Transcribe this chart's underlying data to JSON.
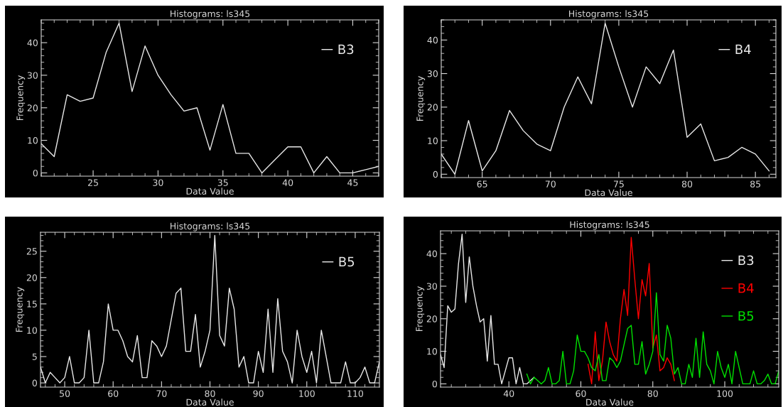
{
  "chart_data": [
    {
      "type": "line",
      "title": "Histograms: ls345",
      "xlabel": "Data Value",
      "ylabel": "Frequency",
      "xlim": [
        21,
        47
      ],
      "ylim": [
        -1,
        47
      ],
      "xticks": [
        25,
        30,
        35,
        40,
        45
      ],
      "yticks": [
        0,
        10,
        20,
        30,
        40
      ],
      "grid": false,
      "legend": "top right",
      "marker": "none",
      "line_style": "solid",
      "series": [
        {
          "name": "B3",
          "color": "#e8e8e8",
          "x": [
            21,
            22,
            23,
            24,
            25,
            26,
            27,
            28,
            29,
            30,
            31,
            32,
            33,
            34,
            35,
            36,
            37,
            38,
            39,
            40,
            41,
            42,
            43,
            44,
            45,
            46,
            47
          ],
          "values": [
            9,
            5,
            24,
            22,
            23,
            37,
            46,
            25,
            39,
            30,
            24,
            19,
            20,
            7,
            21,
            6,
            6,
            0,
            4,
            8,
            8,
            0,
            5,
            0,
            0,
            1,
            2
          ]
        }
      ]
    },
    {
      "type": "line",
      "title": "Histograms: ls345",
      "xlabel": "Data Value",
      "ylabel": "Frequency",
      "xlim": [
        62,
        86.5
      ],
      "ylim": [
        -1,
        46
      ],
      "xticks": [
        65,
        70,
        75,
        80,
        85
      ],
      "yticks": [
        0,
        10,
        20,
        30,
        40
      ],
      "grid": false,
      "legend": "top right",
      "marker": "none",
      "line_style": "solid",
      "series": [
        {
          "name": "B4",
          "color": "#e8e8e8",
          "x": [
            62,
            63,
            64,
            65,
            66,
            67,
            68,
            69,
            70,
            71,
            72,
            73,
            74,
            75,
            76,
            77,
            78,
            79,
            80,
            81,
            82,
            83,
            84,
            85,
            86
          ],
          "values": [
            6,
            0,
            16,
            1,
            7,
            19,
            13,
            9,
            7,
            20,
            29,
            21,
            45,
            32,
            20,
            32,
            27,
            37,
            11,
            15,
            4,
            5,
            8,
            6,
            1
          ]
        }
      ]
    },
    {
      "type": "line",
      "title": "Histograms: ls345",
      "xlabel": "Data Value",
      "ylabel": "Frequency",
      "xlim": [
        45,
        115
      ],
      "ylim": [
        -0.8,
        28.6
      ],
      "xticks": [
        50,
        60,
        70,
        80,
        90,
        100,
        110
      ],
      "yticks": [
        0,
        5,
        10,
        15,
        20,
        25
      ],
      "grid": false,
      "legend": "top right",
      "marker": "none",
      "line_style": "solid",
      "series": [
        {
          "name": "B5",
          "color": "#e8e8e8",
          "x": [
            45,
            46,
            47,
            48,
            49,
            50,
            51,
            52,
            53,
            54,
            55,
            56,
            57,
            58,
            59,
            60,
            61,
            62,
            63,
            64,
            65,
            66,
            67,
            68,
            69,
            70,
            71,
            72,
            73,
            74,
            75,
            76,
            77,
            78,
            79,
            80,
            81,
            82,
            83,
            84,
            85,
            86,
            87,
            88,
            89,
            90,
            91,
            92,
            93,
            94,
            95,
            96,
            97,
            98,
            99,
            100,
            101,
            102,
            103,
            104,
            105,
            106,
            107,
            108,
            109,
            110,
            111,
            112,
            113,
            114,
            115
          ],
          "values": [
            3,
            0,
            2,
            1,
            0,
            1,
            5,
            0,
            0,
            1,
            10,
            0,
            0,
            4,
            15,
            10,
            10,
            8,
            5,
            4,
            9,
            1,
            1,
            8,
            7,
            5,
            7,
            12,
            17,
            18,
            6,
            6,
            13,
            3,
            6,
            10,
            28,
            9,
            7,
            18,
            14,
            3,
            5,
            0,
            0,
            6,
            2,
            14,
            2,
            16,
            6,
            4,
            0,
            10,
            5,
            2,
            6,
            0,
            10,
            5,
            0,
            0,
            0,
            4,
            0,
            0,
            1,
            3,
            0,
            0,
            4
          ]
        }
      ]
    },
    {
      "type": "line",
      "title": "Histograms: ls345",
      "xlabel": "Data Value",
      "ylabel": "Frequency",
      "xlim": [
        21,
        115
      ],
      "ylim": [
        -1,
        47
      ],
      "xticks": [
        40,
        60,
        80,
        100
      ],
      "yticks": [
        0,
        10,
        20,
        30,
        40
      ],
      "grid": false,
      "legend": "top right",
      "marker": "none",
      "line_style": "solid",
      "series": [
        {
          "name": "B3",
          "color": "#e8e8e8",
          "x": [
            21,
            22,
            23,
            24,
            25,
            26,
            27,
            28,
            29,
            30,
            31,
            32,
            33,
            34,
            35,
            36,
            37,
            38,
            39,
            40,
            41,
            42,
            43,
            44,
            45,
            46,
            47
          ],
          "values": [
            9,
            5,
            24,
            22,
            23,
            37,
            46,
            25,
            39,
            30,
            24,
            19,
            20,
            7,
            21,
            6,
            6,
            0,
            4,
            8,
            8,
            0,
            5,
            0,
            0,
            1,
            2
          ]
        },
        {
          "name": "B4",
          "color": "#ff0000",
          "x": [
            62,
            63,
            64,
            65,
            66,
            67,
            68,
            69,
            70,
            71,
            72,
            73,
            74,
            75,
            76,
            77,
            78,
            79,
            80,
            81,
            82,
            83,
            84,
            85,
            86
          ],
          "values": [
            6,
            0,
            16,
            1,
            7,
            19,
            13,
            9,
            7,
            20,
            29,
            21,
            45,
            32,
            20,
            32,
            27,
            37,
            11,
            15,
            4,
            5,
            8,
            6,
            1
          ]
        },
        {
          "name": "B5",
          "color": "#00e000",
          "x": [
            45,
            46,
            47,
            48,
            49,
            50,
            51,
            52,
            53,
            54,
            55,
            56,
            57,
            58,
            59,
            60,
            61,
            62,
            63,
            64,
            65,
            66,
            67,
            68,
            69,
            70,
            71,
            72,
            73,
            74,
            75,
            76,
            77,
            78,
            79,
            80,
            81,
            82,
            83,
            84,
            85,
            86,
            87,
            88,
            89,
            90,
            91,
            92,
            93,
            94,
            95,
            96,
            97,
            98,
            99,
            100,
            101,
            102,
            103,
            104,
            105,
            106,
            107,
            108,
            109,
            110,
            111,
            112,
            113,
            114,
            115
          ],
          "values": [
            3,
            0,
            2,
            1,
            0,
            1,
            5,
            0,
            0,
            1,
            10,
            0,
            0,
            4,
            15,
            10,
            10,
            8,
            5,
            4,
            9,
            1,
            1,
            8,
            7,
            5,
            7,
            12,
            17,
            18,
            6,
            6,
            13,
            3,
            6,
            10,
            28,
            9,
            7,
            18,
            14,
            3,
            5,
            0,
            0,
            6,
            2,
            14,
            2,
            16,
            6,
            4,
            0,
            10,
            5,
            2,
            6,
            0,
            10,
            5,
            0,
            0,
            0,
            4,
            0,
            0,
            1,
            3,
            0,
            0,
            4
          ]
        }
      ]
    }
  ]
}
